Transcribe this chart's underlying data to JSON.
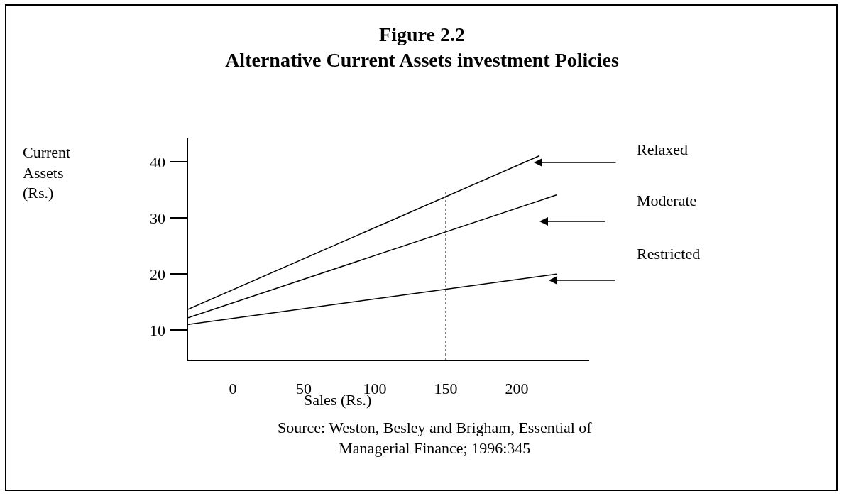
{
  "chart_data": {
    "type": "line",
    "title": "Figure 2.2\nAlternative Current Assets investment Policies",
    "xlabel": "Sales (Rs.)",
    "annotations": [
      "Source: Weston, Besley and Brigham, Essential of\nManagerial Finance; 1996:345",
      "Current\nAssets\n(Rs.)"
    ],
    "xlim": [
      -31.5,
      251
    ],
    "xticks": [
      0,
      50,
      100,
      150,
      200
    ],
    "ylim": [
      4.7,
      44.2
    ],
    "yticks": [
      10,
      20,
      30,
      40
    ],
    "series": [
      {
        "name": "Relaxed",
        "color": "#000000",
        "x": [
          -31.5,
          216
        ],
        "values": [
          13.7,
          41.1
        ]
      },
      {
        "name": "Moderate",
        "color": "#000000",
        "x": [
          -31.5,
          228
        ],
        "values": [
          12.2,
          34.1
        ]
      },
      {
        "name": "Restricted",
        "color": "#000000",
        "x": [
          -31.5,
          228
        ],
        "values": [
          11.0,
          20.0
        ]
      }
    ],
    "ref_lines": [
      {
        "axis": "x",
        "value": 150,
        "line_style": "dotted",
        "color": "#000000"
      }
    ],
    "grid": false,
    "legend": false,
    "marker": "none",
    "line_style": "solid"
  }
}
